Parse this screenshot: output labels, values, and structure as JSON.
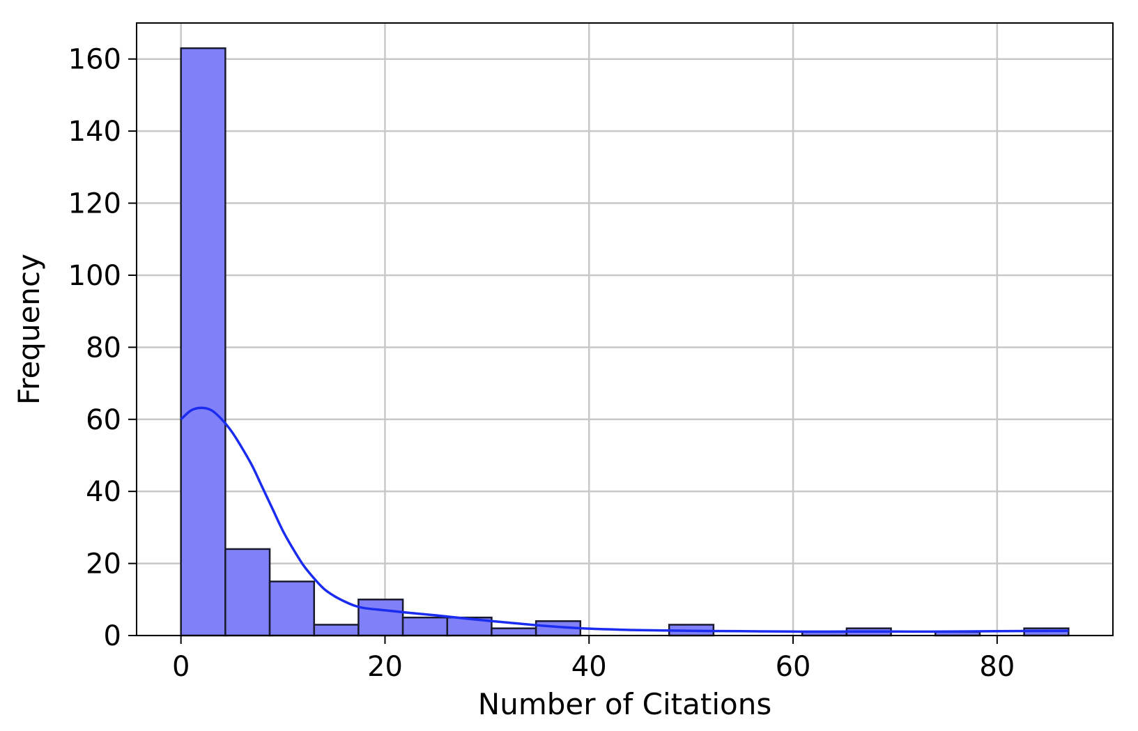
{
  "chart_data": {
    "type": "bar",
    "title": "",
    "xlabel": "Number of Citations",
    "ylabel": "Frequency",
    "xlim": [
      -4.35,
      91.35
    ],
    "ylim": [
      0,
      170
    ],
    "xticks": [
      0,
      20,
      40,
      60,
      80
    ],
    "yticks": [
      0,
      20,
      40,
      60,
      80,
      100,
      120,
      140,
      160
    ],
    "grid": true,
    "bar_color": "#8080f8",
    "edge_color": "#1a1a2e",
    "kde_color": "#1a2cf0",
    "bins": [
      {
        "x0": 0.0,
        "x1": 4.35,
        "count": 163
      },
      {
        "x0": 4.35,
        "x1": 8.7,
        "count": 24
      },
      {
        "x0": 8.7,
        "x1": 13.05,
        "count": 15
      },
      {
        "x0": 13.05,
        "x1": 17.4,
        "count": 3
      },
      {
        "x0": 17.4,
        "x1": 21.75,
        "count": 10
      },
      {
        "x0": 21.75,
        "x1": 26.1,
        "count": 5
      },
      {
        "x0": 26.1,
        "x1": 30.45,
        "count": 5
      },
      {
        "x0": 30.45,
        "x1": 34.8,
        "count": 2
      },
      {
        "x0": 34.8,
        "x1": 39.15,
        "count": 4
      },
      {
        "x0": 39.15,
        "x1": 43.5,
        "count": 0
      },
      {
        "x0": 43.5,
        "x1": 47.85,
        "count": 0
      },
      {
        "x0": 47.85,
        "x1": 52.2,
        "count": 3
      },
      {
        "x0": 52.2,
        "x1": 56.55,
        "count": 0
      },
      {
        "x0": 56.55,
        "x1": 60.9,
        "count": 0
      },
      {
        "x0": 60.9,
        "x1": 65.25,
        "count": 1
      },
      {
        "x0": 65.25,
        "x1": 69.6,
        "count": 2
      },
      {
        "x0": 69.6,
        "x1": 73.95,
        "count": 0
      },
      {
        "x0": 73.95,
        "x1": 78.3,
        "count": 1
      },
      {
        "x0": 78.3,
        "x1": 82.65,
        "count": 0
      },
      {
        "x0": 82.65,
        "x1": 87.0,
        "count": 2
      }
    ],
    "kde": {
      "x": [
        0,
        1,
        2,
        3,
        4,
        5,
        6,
        7,
        8,
        9,
        10,
        11,
        12,
        13,
        14,
        15,
        16,
        17,
        18,
        20,
        22,
        25,
        28,
        32,
        36,
        40,
        45,
        50,
        55,
        60,
        65,
        70,
        75,
        80,
        87
      ],
      "y": [
        60,
        62.5,
        63.2,
        62.5,
        60,
        56.5,
        52,
        47,
        41,
        35,
        29,
        24,
        19.5,
        16,
        13,
        11,
        9.5,
        8.3,
        7.6,
        7,
        6.4,
        5.6,
        4.7,
        3.6,
        2.6,
        1.9,
        1.5,
        1.3,
        1.2,
        1.1,
        1.1,
        1.1,
        1.1,
        1.2,
        1.3
      ]
    }
  }
}
